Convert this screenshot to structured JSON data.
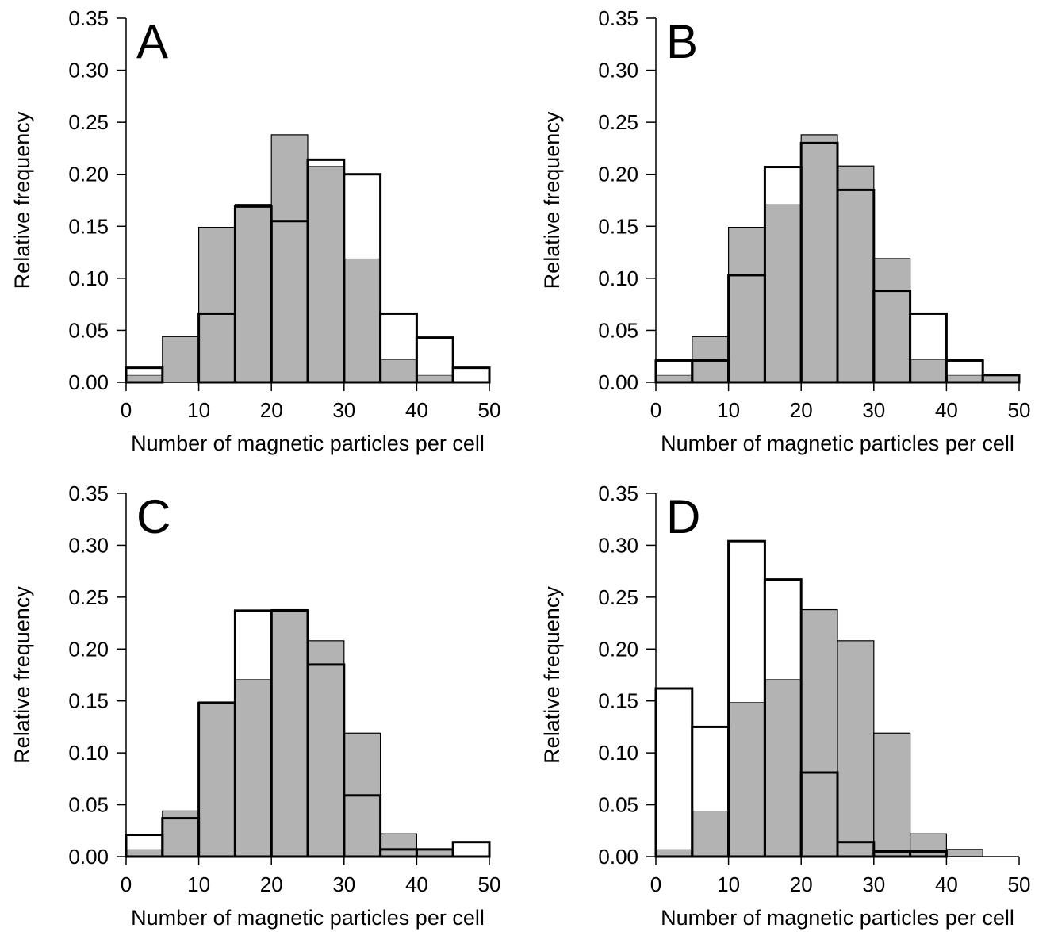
{
  "colors": {
    "shaded_bar": "#b3b3b3",
    "open_bar": "#ffffff",
    "line": "#000000"
  },
  "axis_text": {
    "ylabel": "Relative frequency",
    "xlabel": "Number of magnetic particles per cell"
  },
  "chart_data": [
    {
      "type": "bar",
      "panel_label": "A",
      "xlabel": "Number of magnetic particles per cell",
      "ylabel": "Relative frequency",
      "xlim": [
        0,
        50
      ],
      "ylim": [
        0,
        0.35
      ],
      "xticks": [
        "0",
        "10",
        "20",
        "30",
        "40",
        "50"
      ],
      "yticks": [
        "0.00",
        "0.05",
        "0.10",
        "0.15",
        "0.20",
        "0.25",
        "0.30",
        "0.35"
      ],
      "bin_edges": [
        0,
        5,
        10,
        15,
        20,
        25,
        30,
        35,
        40,
        45,
        50
      ],
      "series": [
        {
          "style": "shaded",
          "values": [
            0.007,
            0.044,
            0.149,
            0.171,
            0.238,
            0.208,
            0.119,
            0.022,
            0.007,
            0.0
          ]
        },
        {
          "style": "outline",
          "values": [
            0.014,
            0.0,
            0.066,
            0.169,
            0.155,
            0.214,
            0.2,
            0.066,
            0.043,
            0.014
          ]
        }
      ]
    },
    {
      "type": "bar",
      "panel_label": "B",
      "xlabel": "Number of magnetic particles per cell",
      "ylabel": "Relative frequency",
      "xlim": [
        0,
        50
      ],
      "ylim": [
        0,
        0.35
      ],
      "xticks": [
        "0",
        "10",
        "20",
        "30",
        "40",
        "50"
      ],
      "yticks": [
        "0.00",
        "0.05",
        "0.10",
        "0.15",
        "0.20",
        "0.25",
        "0.30",
        "0.35"
      ],
      "bin_edges": [
        0,
        5,
        10,
        15,
        20,
        25,
        30,
        35,
        40,
        45,
        50
      ],
      "series": [
        {
          "style": "shaded",
          "values": [
            0.007,
            0.044,
            0.149,
            0.171,
            0.238,
            0.208,
            0.119,
            0.022,
            0.007,
            0.007
          ]
        },
        {
          "style": "outline",
          "values": [
            0.021,
            0.021,
            0.103,
            0.207,
            0.23,
            0.185,
            0.088,
            0.066,
            0.021,
            0.007
          ]
        }
      ]
    },
    {
      "type": "bar",
      "panel_label": "C",
      "xlabel": "Number of magnetic particles per cell",
      "ylabel": "Relative frequency",
      "xlim": [
        0,
        50
      ],
      "ylim": [
        0,
        0.35
      ],
      "xticks": [
        "0",
        "10",
        "20",
        "30",
        "40",
        "50"
      ],
      "yticks": [
        "0.00",
        "0.05",
        "0.10",
        "0.15",
        "0.20",
        "0.25",
        "0.30",
        "0.35"
      ],
      "bin_edges": [
        0,
        5,
        10,
        15,
        20,
        25,
        30,
        35,
        40,
        45,
        50
      ],
      "series": [
        {
          "style": "shaded",
          "values": [
            0.007,
            0.044,
            0.149,
            0.171,
            0.238,
            0.208,
            0.119,
            0.022,
            0.007,
            0.0
          ]
        },
        {
          "style": "outline",
          "values": [
            0.021,
            0.037,
            0.148,
            0.237,
            0.237,
            0.185,
            0.059,
            0.007,
            0.007,
            0.014
          ]
        }
      ]
    },
    {
      "type": "bar",
      "panel_label": "D",
      "xlabel": "Number of magnetic particles per cell",
      "ylabel": "Relative frequency",
      "xlim": [
        0,
        50
      ],
      "ylim": [
        0,
        0.35
      ],
      "xticks": [
        "0",
        "10",
        "20",
        "30",
        "40",
        "50"
      ],
      "yticks": [
        "0.00",
        "0.05",
        "0.10",
        "0.15",
        "0.20",
        "0.25",
        "0.30",
        "0.35"
      ],
      "bin_edges": [
        0,
        5,
        10,
        15,
        20,
        25,
        30,
        35,
        40,
        45,
        50
      ],
      "series": [
        {
          "style": "shaded",
          "values": [
            0.007,
            0.044,
            0.149,
            0.171,
            0.238,
            0.208,
            0.119,
            0.022,
            0.007,
            0.0
          ]
        },
        {
          "style": "outline",
          "values": [
            0.162,
            0.125,
            0.304,
            0.267,
            0.081,
            0.014,
            0.005,
            0.005,
            0.0,
            0.0
          ]
        }
      ]
    }
  ]
}
